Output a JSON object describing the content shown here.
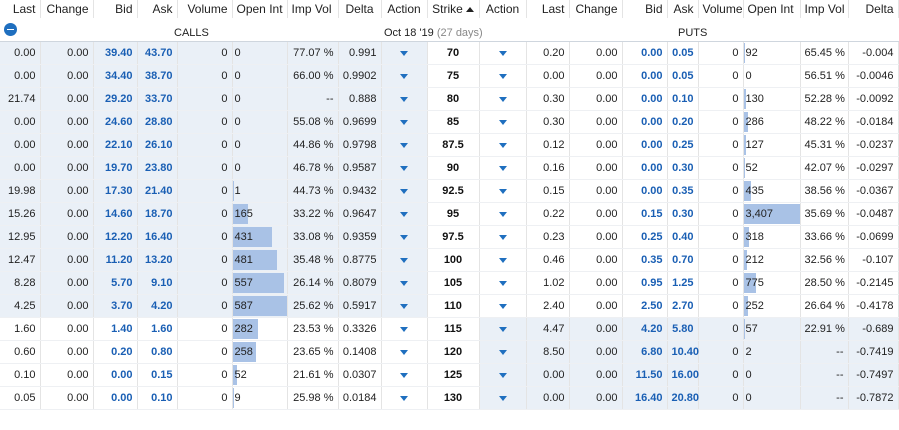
{
  "headers": {
    "calls": [
      "Last",
      "Change",
      "Bid",
      "Ask",
      "Volume",
      "Open Int",
      "Imp Vol",
      "Delta",
      "Action"
    ],
    "strike": "Strike",
    "puts": [
      "Action",
      "Last",
      "Change",
      "Bid",
      "Ask",
      "Volume",
      "Open Int",
      "Imp Vol",
      "Delta"
    ]
  },
  "calls_label": "CALLS",
  "puts_label": "PUTS",
  "expiration": {
    "date": "Oct 18 '19",
    "days": "(27 days)"
  },
  "rows": [
    {
      "strike": "70",
      "call": {
        "last": "0.00",
        "change": "0.00",
        "bid": "39.40",
        "ask": "43.70",
        "volume": "0",
        "oi": "0",
        "oi_frac": 0,
        "iv": "77.07 %",
        "delta": "0.991"
      },
      "put": {
        "last": "0.20",
        "change": "0.00",
        "bid": "0.00",
        "ask": "0.05",
        "volume": "0",
        "oi": "92",
        "oi_frac": 0.027,
        "iv": "65.45 %",
        "delta": "-0.004"
      },
      "call_itm": true,
      "put_itm": false
    },
    {
      "strike": "75",
      "call": {
        "last": "0.00",
        "change": "0.00",
        "bid": "34.40",
        "ask": "38.70",
        "volume": "0",
        "oi": "0",
        "oi_frac": 0,
        "iv": "66.00 %",
        "delta": "0.9902"
      },
      "put": {
        "last": "0.00",
        "change": "0.00",
        "bid": "0.00",
        "ask": "0.05",
        "volume": "0",
        "oi": "0",
        "oi_frac": 0,
        "iv": "56.51 %",
        "delta": "-0.0046"
      },
      "call_itm": true,
      "put_itm": false
    },
    {
      "strike": "80",
      "call": {
        "last": "21.74",
        "change": "0.00",
        "bid": "29.20",
        "ask": "33.70",
        "volume": "0",
        "oi": "0",
        "oi_frac": 0,
        "iv": "--",
        "delta": "0.888"
      },
      "put": {
        "last": "0.30",
        "change": "0.00",
        "bid": "0.00",
        "ask": "0.10",
        "volume": "0",
        "oi": "130",
        "oi_frac": 0.038,
        "iv": "52.28 %",
        "delta": "-0.0092"
      },
      "call_itm": true,
      "put_itm": false
    },
    {
      "strike": "85",
      "call": {
        "last": "0.00",
        "change": "0.00",
        "bid": "24.60",
        "ask": "28.80",
        "volume": "0",
        "oi": "0",
        "oi_frac": 0,
        "iv": "55.08 %",
        "delta": "0.9699"
      },
      "put": {
        "last": "0.30",
        "change": "0.00",
        "bid": "0.00",
        "ask": "0.20",
        "volume": "0",
        "oi": "286",
        "oi_frac": 0.084,
        "iv": "48.22 %",
        "delta": "-0.0184"
      },
      "call_itm": true,
      "put_itm": false
    },
    {
      "strike": "87.5",
      "call": {
        "last": "0.00",
        "change": "0.00",
        "bid": "22.10",
        "ask": "26.10",
        "volume": "0",
        "oi": "0",
        "oi_frac": 0,
        "iv": "44.86 %",
        "delta": "0.9798"
      },
      "put": {
        "last": "0.12",
        "change": "0.00",
        "bid": "0.00",
        "ask": "0.25",
        "volume": "0",
        "oi": "127",
        "oi_frac": 0.037,
        "iv": "45.31 %",
        "delta": "-0.0237"
      },
      "call_itm": true,
      "put_itm": false
    },
    {
      "strike": "90",
      "call": {
        "last": "0.00",
        "change": "0.00",
        "bid": "19.70",
        "ask": "23.80",
        "volume": "0",
        "oi": "0",
        "oi_frac": 0,
        "iv": "46.78 %",
        "delta": "0.9587"
      },
      "put": {
        "last": "0.16",
        "change": "0.00",
        "bid": "0.00",
        "ask": "0.30",
        "volume": "0",
        "oi": "52",
        "oi_frac": 0.015,
        "iv": "42.07 %",
        "delta": "-0.0297"
      },
      "call_itm": true,
      "put_itm": false
    },
    {
      "strike": "92.5",
      "call": {
        "last": "19.98",
        "change": "0.00",
        "bid": "17.30",
        "ask": "21.40",
        "volume": "0",
        "oi": "1",
        "oi_frac": 0.002,
        "iv": "44.73 %",
        "delta": "0.9432"
      },
      "put": {
        "last": "0.15",
        "change": "0.00",
        "bid": "0.00",
        "ask": "0.35",
        "volume": "0",
        "oi": "435",
        "oi_frac": 0.128,
        "iv": "38.56 %",
        "delta": "-0.0367"
      },
      "call_itm": true,
      "put_itm": false
    },
    {
      "strike": "95",
      "call": {
        "last": "15.26",
        "change": "0.00",
        "bid": "14.60",
        "ask": "18.70",
        "volume": "0",
        "oi": "165",
        "oi_frac": 0.281,
        "iv": "33.22 %",
        "delta": "0.9647"
      },
      "put": {
        "last": "0.22",
        "change": "0.00",
        "bid": "0.15",
        "ask": "0.30",
        "volume": "0",
        "oi": "3,407",
        "oi_frac": 1.0,
        "iv": "35.69 %",
        "delta": "-0.0487"
      },
      "call_itm": true,
      "put_itm": false
    },
    {
      "strike": "97.5",
      "call": {
        "last": "12.95",
        "change": "0.00",
        "bid": "12.20",
        "ask": "16.40",
        "volume": "0",
        "oi": "431",
        "oi_frac": 0.734,
        "iv": "33.08 %",
        "delta": "0.9359"
      },
      "put": {
        "last": "0.23",
        "change": "0.00",
        "bid": "0.25",
        "ask": "0.40",
        "volume": "0",
        "oi": "318",
        "oi_frac": 0.093,
        "iv": "33.66 %",
        "delta": "-0.0699"
      },
      "call_itm": true,
      "put_itm": false
    },
    {
      "strike": "100",
      "call": {
        "last": "12.47",
        "change": "0.00",
        "bid": "11.20",
        "ask": "13.20",
        "volume": "0",
        "oi": "481",
        "oi_frac": 0.819,
        "iv": "35.48 %",
        "delta": "0.8775"
      },
      "put": {
        "last": "0.46",
        "change": "0.00",
        "bid": "0.35",
        "ask": "0.70",
        "volume": "0",
        "oi": "212",
        "oi_frac": 0.062,
        "iv": "32.56 %",
        "delta": "-0.107"
      },
      "call_itm": true,
      "put_itm": false
    },
    {
      "strike": "105",
      "call": {
        "last": "8.28",
        "change": "0.00",
        "bid": "5.70",
        "ask": "9.10",
        "volume": "0",
        "oi": "557",
        "oi_frac": 0.949,
        "iv": "26.14 %",
        "delta": "0.8079"
      },
      "put": {
        "last": "1.02",
        "change": "0.00",
        "bid": "0.95",
        "ask": "1.25",
        "volume": "0",
        "oi": "775",
        "oi_frac": 0.227,
        "iv": "28.50 %",
        "delta": "-0.2145"
      },
      "call_itm": true,
      "put_itm": false
    },
    {
      "strike": "110",
      "call": {
        "last": "4.25",
        "change": "0.00",
        "bid": "3.70",
        "ask": "4.20",
        "volume": "0",
        "oi": "587",
        "oi_frac": 1.0,
        "iv": "25.62 %",
        "delta": "0.5917"
      },
      "put": {
        "last": "2.40",
        "change": "0.00",
        "bid": "2.50",
        "ask": "2.70",
        "volume": "0",
        "oi": "252",
        "oi_frac": 0.074,
        "iv": "26.64 %",
        "delta": "-0.4178"
      },
      "call_itm": true,
      "put_itm": false
    },
    {
      "strike": "115",
      "call": {
        "last": "1.60",
        "change": "0.00",
        "bid": "1.40",
        "ask": "1.60",
        "volume": "0",
        "oi": "282",
        "oi_frac": 0.48,
        "iv": "23.53 %",
        "delta": "0.3326"
      },
      "put": {
        "last": "4.47",
        "change": "0.00",
        "bid": "4.20",
        "ask": "5.80",
        "volume": "0",
        "oi": "57",
        "oi_frac": 0.017,
        "iv": "22.91 %",
        "delta": "-0.689"
      },
      "call_itm": false,
      "put_itm": true
    },
    {
      "strike": "120",
      "call": {
        "last": "0.60",
        "change": "0.00",
        "bid": "0.20",
        "ask": "0.80",
        "volume": "0",
        "oi": "258",
        "oi_frac": 0.44,
        "iv": "23.65 %",
        "delta": "0.1408"
      },
      "put": {
        "last": "8.50",
        "change": "0.00",
        "bid": "6.80",
        "ask": "10.40",
        "volume": "0",
        "oi": "2",
        "oi_frac": 0.001,
        "iv": "--",
        "delta": "-0.7419"
      },
      "call_itm": false,
      "put_itm": true
    },
    {
      "strike": "125",
      "call": {
        "last": "0.10",
        "change": "0.00",
        "bid": "0.00",
        "ask": "0.15",
        "volume": "0",
        "oi": "52",
        "oi_frac": 0.089,
        "iv": "21.61 %",
        "delta": "0.0307"
      },
      "put": {
        "last": "0.00",
        "change": "0.00",
        "bid": "11.50",
        "ask": "16.00",
        "volume": "0",
        "oi": "0",
        "oi_frac": 0,
        "iv": "--",
        "delta": "-0.7497"
      },
      "call_itm": false,
      "put_itm": true
    },
    {
      "strike": "130",
      "call": {
        "last": "0.05",
        "change": "0.00",
        "bid": "0.00",
        "ask": "0.10",
        "volume": "0",
        "oi": "9",
        "oi_frac": 0.015,
        "iv": "25.98 %",
        "delta": "0.0184"
      },
      "put": {
        "last": "0.00",
        "change": "0.00",
        "bid": "16.40",
        "ask": "20.80",
        "volume": "0",
        "oi": "0",
        "oi_frac": 0,
        "iv": "--",
        "delta": "-0.7872"
      },
      "call_itm": false,
      "put_itm": true
    }
  ]
}
